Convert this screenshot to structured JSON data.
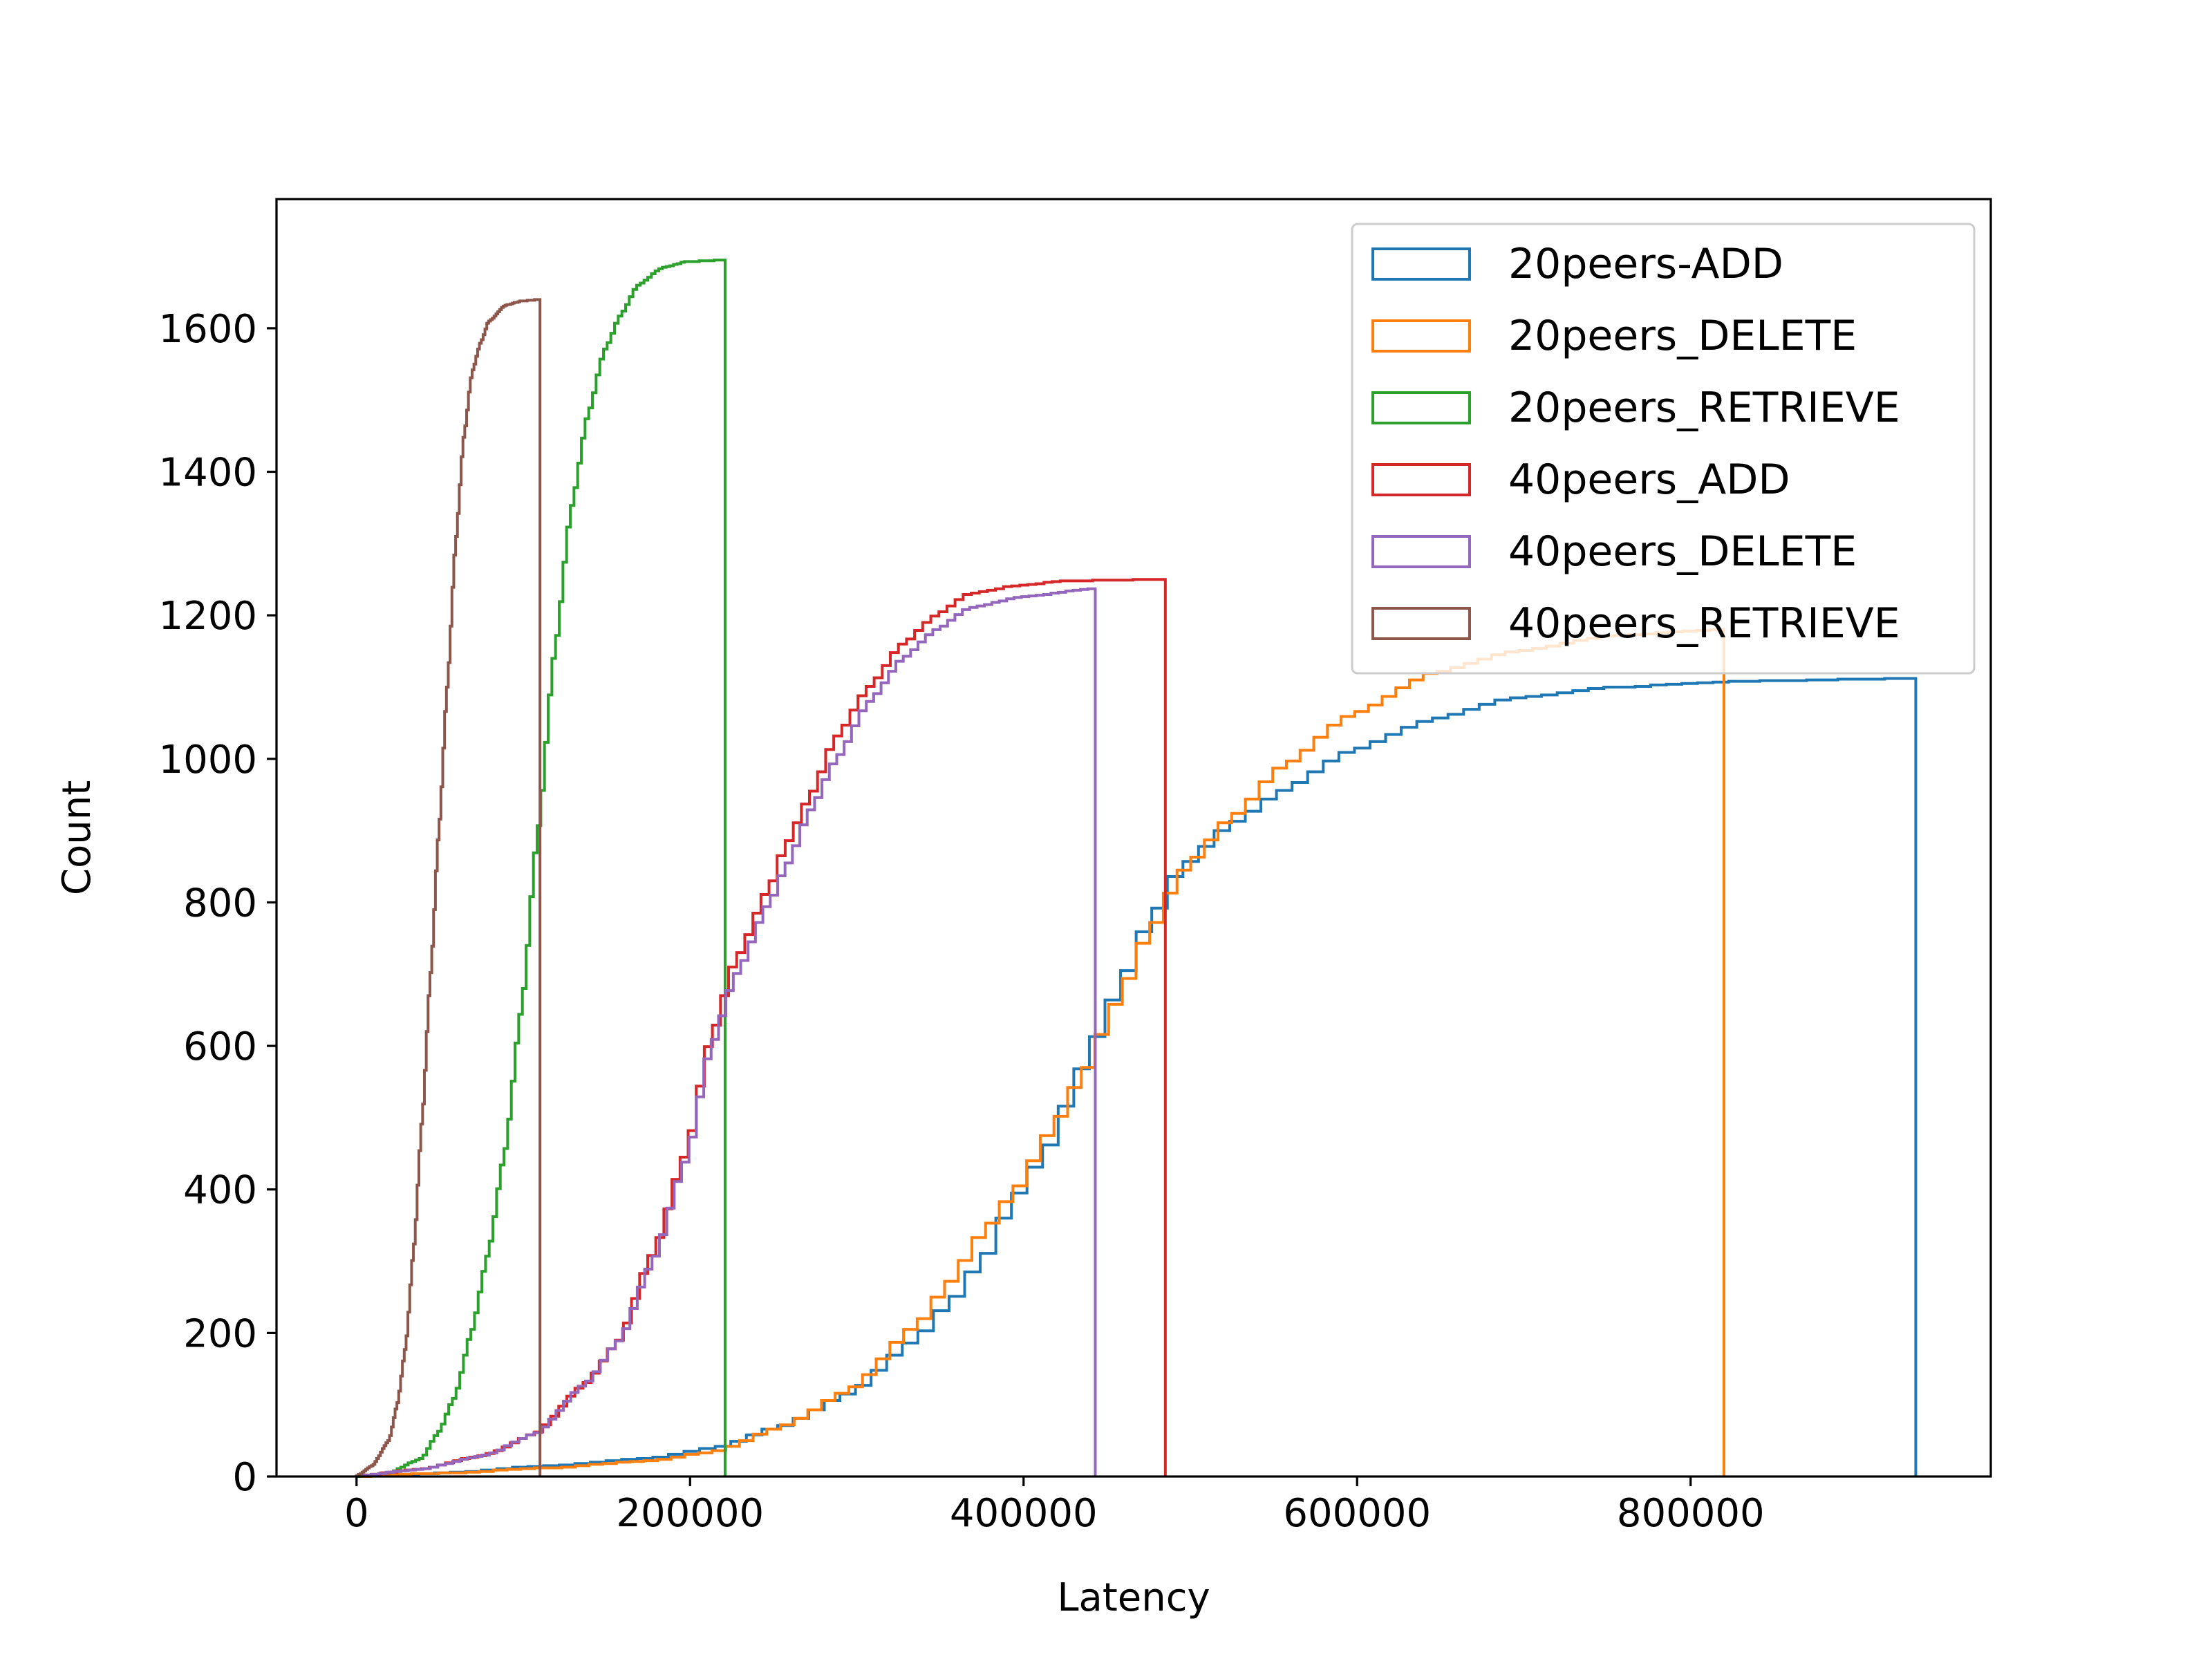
{
  "chart_data": {
    "type": "histogram-step",
    "xlabel": "Latency",
    "ylabel": "Count",
    "xlim": [
      -48000,
      980000
    ],
    "ylim": [
      0,
      1780
    ],
    "x_ticks": [
      0,
      200000,
      400000,
      600000,
      800000
    ],
    "x_tick_labels": [
      "0",
      "200000",
      "400000",
      "600000",
      "800000"
    ],
    "y_ticks": [
      0,
      200,
      400,
      600,
      800,
      1000,
      1200,
      1400,
      1600
    ],
    "y_tick_labels": [
      "0",
      "200",
      "400",
      "600",
      "800",
      "1000",
      "1200",
      "1400",
      "1600"
    ],
    "legend_position": "top-right",
    "series": [
      {
        "name": "20peers-ADD",
        "color": "#1f77b4",
        "x_max": 935000,
        "points": [
          [
            0,
            0
          ],
          [
            60000,
            5
          ],
          [
            120000,
            15
          ],
          [
            180000,
            25
          ],
          [
            220000,
            40
          ],
          [
            260000,
            70
          ],
          [
            300000,
            115
          ],
          [
            340000,
            190
          ],
          [
            360000,
            240
          ],
          [
            380000,
            300
          ],
          [
            400000,
            390
          ],
          [
            420000,
            460
          ],
          [
            440000,
            570
          ],
          [
            460000,
            670
          ],
          [
            480000,
            770
          ],
          [
            500000,
            850
          ],
          [
            530000,
            910
          ],
          [
            560000,
            955
          ],
          [
            600000,
            1010
          ],
          [
            650000,
            1055
          ],
          [
            700000,
            1085
          ],
          [
            760000,
            1100
          ],
          [
            830000,
            1108
          ],
          [
            935000,
            1112
          ]
        ]
      },
      {
        "name": "20peers_DELETE",
        "color": "#ff7f0e",
        "x_max": 820000,
        "points": [
          [
            0,
            0
          ],
          [
            60000,
            5
          ],
          [
            120000,
            12
          ],
          [
            180000,
            22
          ],
          [
            220000,
            35
          ],
          [
            260000,
            70
          ],
          [
            300000,
            120
          ],
          [
            340000,
            210
          ],
          [
            360000,
            270
          ],
          [
            380000,
            340
          ],
          [
            400000,
            400
          ],
          [
            420000,
            480
          ],
          [
            440000,
            560
          ],
          [
            460000,
            660
          ],
          [
            480000,
            760
          ],
          [
            500000,
            845
          ],
          [
            530000,
            920
          ],
          [
            560000,
            990
          ],
          [
            600000,
            1060
          ],
          [
            650000,
            1120
          ],
          [
            700000,
            1150
          ],
          [
            760000,
            1172
          ],
          [
            820000,
            1180
          ]
        ]
      },
      {
        "name": "20peers_RETRIEVE",
        "color": "#2ca02c",
        "x_max": 221000,
        "points": [
          [
            0,
            0
          ],
          [
            20000,
            5
          ],
          [
            40000,
            25
          ],
          [
            50000,
            60
          ],
          [
            60000,
            110
          ],
          [
            70000,
            200
          ],
          [
            80000,
            310
          ],
          [
            90000,
            450
          ],
          [
            100000,
            650
          ],
          [
            110000,
            900
          ],
          [
            120000,
            1150
          ],
          [
            130000,
            1350
          ],
          [
            140000,
            1480
          ],
          [
            150000,
            1570
          ],
          [
            160000,
            1620
          ],
          [
            170000,
            1660
          ],
          [
            185000,
            1685
          ],
          [
            200000,
            1693
          ],
          [
            221000,
            1695
          ]
        ]
      },
      {
        "name": "40peers_ADD",
        "color": "#d62728",
        "x_max": 485000,
        "points": [
          [
            0,
            0
          ],
          [
            40000,
            10
          ],
          [
            80000,
            30
          ],
          [
            110000,
            60
          ],
          [
            140000,
            130
          ],
          [
            160000,
            190
          ],
          [
            180000,
            310
          ],
          [
            200000,
            450
          ],
          [
            215000,
            610
          ],
          [
            230000,
            720
          ],
          [
            250000,
            820
          ],
          [
            260000,
            880
          ],
          [
            275000,
            950
          ],
          [
            290000,
            1030
          ],
          [
            310000,
            1100
          ],
          [
            330000,
            1160
          ],
          [
            350000,
            1200
          ],
          [
            370000,
            1230
          ],
          [
            400000,
            1242
          ],
          [
            430000,
            1248
          ],
          [
            485000,
            1250
          ]
        ]
      },
      {
        "name": "40peers_DELETE",
        "color": "#9467bd",
        "x_max": 443000,
        "points": [
          [
            0,
            0
          ],
          [
            40000,
            10
          ],
          [
            80000,
            30
          ],
          [
            110000,
            60
          ],
          [
            140000,
            130
          ],
          [
            160000,
            190
          ],
          [
            180000,
            300
          ],
          [
            200000,
            440
          ],
          [
            215000,
            600
          ],
          [
            230000,
            700
          ],
          [
            250000,
            800
          ],
          [
            260000,
            850
          ],
          [
            275000,
            930
          ],
          [
            290000,
            1000
          ],
          [
            310000,
            1080
          ],
          [
            330000,
            1140
          ],
          [
            350000,
            1180
          ],
          [
            370000,
            1210
          ],
          [
            400000,
            1225
          ],
          [
            443000,
            1237
          ]
        ]
      },
      {
        "name": "40peers_RETRIEVE",
        "color": "#8c564b",
        "x_max": 110000,
        "points": [
          [
            0,
            0
          ],
          [
            10000,
            15
          ],
          [
            20000,
            50
          ],
          [
            25000,
            100
          ],
          [
            30000,
            180
          ],
          [
            35000,
            320
          ],
          [
            40000,
            500
          ],
          [
            45000,
            700
          ],
          [
            50000,
            900
          ],
          [
            55000,
            1100
          ],
          [
            60000,
            1300
          ],
          [
            65000,
            1450
          ],
          [
            70000,
            1540
          ],
          [
            75000,
            1580
          ],
          [
            80000,
            1610
          ],
          [
            90000,
            1632
          ],
          [
            100000,
            1638
          ],
          [
            110000,
            1640
          ]
        ]
      }
    ]
  }
}
